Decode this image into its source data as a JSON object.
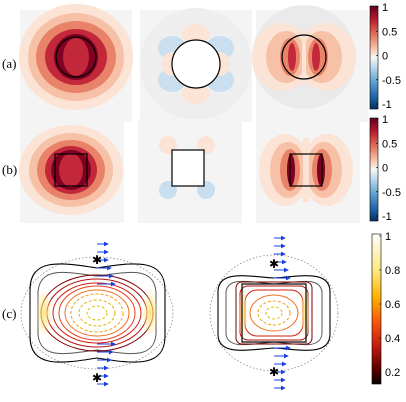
{
  "panels": {
    "a": "(a)",
    "b": "(b)",
    "c": "(c)"
  },
  "colorbar_a": {
    "ticks": [
      "1",
      "0.5",
      "0",
      "-0.5",
      "-1"
    ],
    "values": [
      1,
      0.5,
      0,
      -0.5,
      -1
    ]
  },
  "colorbar_b": {
    "ticks": [
      "1",
      "0.5",
      "0",
      "-0.5",
      "-1"
    ],
    "values": [
      1,
      0.5,
      0,
      -0.5,
      -1
    ]
  },
  "colorbar_c": {
    "ticks": [
      "1",
      "0.8",
      "0.6",
      "0.4",
      "0.2"
    ],
    "values": [
      1,
      0.8,
      0.6,
      0.4,
      0.2
    ]
  },
  "colors": {
    "darkred": "#7f0020",
    "red": "#c2283a",
    "salmon": "#e8836a",
    "peach": "#f6c1a7",
    "lightpeach": "#fbe3d6",
    "neutral": "#f4f4f4",
    "lightblue": "#c9dff0",
    "blue": "#2f78b9",
    "darkblue": "#08306b",
    "arrow": "#1a3fe0"
  }
}
